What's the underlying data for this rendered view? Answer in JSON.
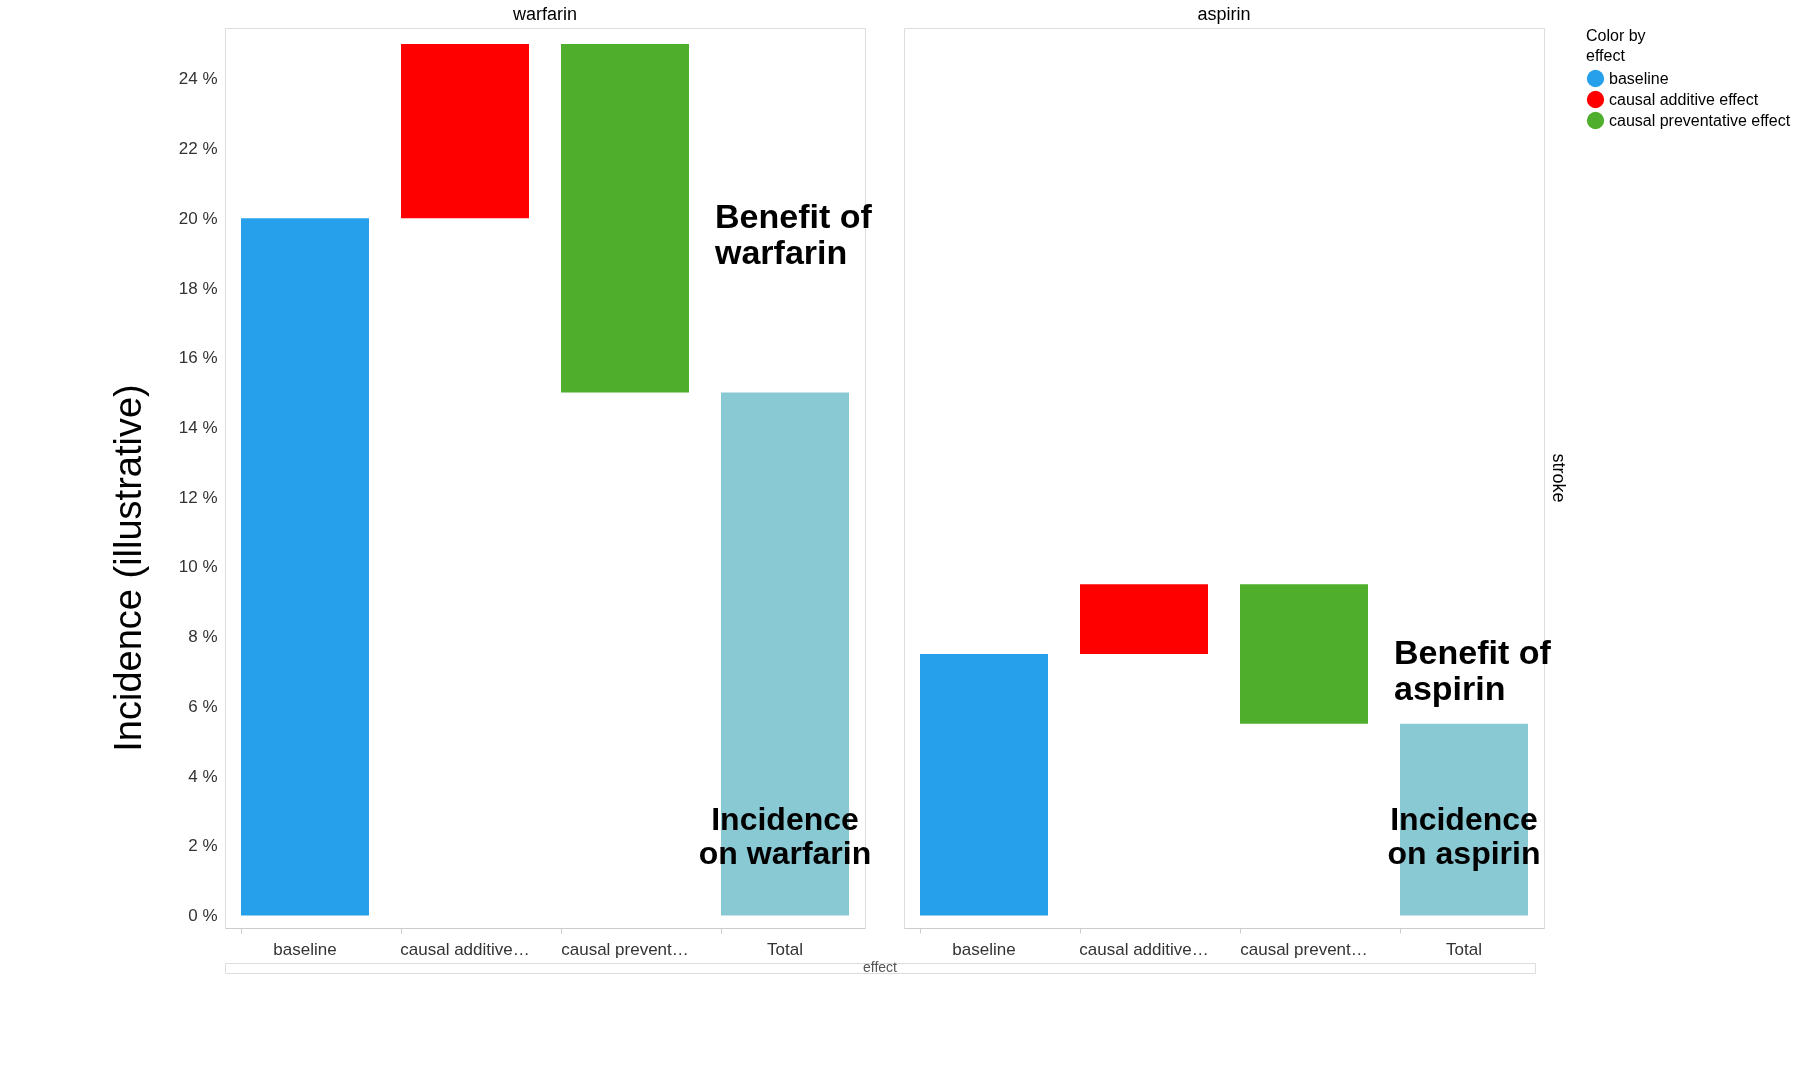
{
  "chart_data": [
    {
      "type": "bar",
      "title": "warfarin",
      "xlabel": "effect",
      "ylabel": "Incidence (illustrative)",
      "categories": [
        "baseline",
        "causal additive…",
        "causal prevent…",
        "Total"
      ],
      "series": [
        {
          "name": "baseline",
          "color": "#27a0eb",
          "values": [
            20,
            null,
            null,
            null
          ],
          "base": [
            0,
            null,
            null,
            null
          ]
        },
        {
          "name": "causal additive effect",
          "color": "#ff0000",
          "values": [
            null,
            5,
            null,
            null
          ],
          "base": [
            null,
            20,
            null,
            null
          ]
        },
        {
          "name": "causal preventative effect",
          "color": "#4fae2b",
          "values": [
            null,
            null,
            -10,
            null
          ],
          "base": [
            null,
            null,
            25,
            null
          ]
        },
        {
          "color": "#89c9d3",
          "values": [
            null,
            null,
            null,
            15
          ],
          "base": [
            null,
            null,
            null,
            0
          ]
        }
      ],
      "ylim": [
        -0.36,
        25.46
      ],
      "yticks": [
        {
          "value": 0,
          "label": "0 %"
        },
        {
          "value": 2,
          "label": "2 %"
        },
        {
          "value": 4,
          "label": "4 %"
        },
        {
          "value": 6,
          "label": "6 %"
        },
        {
          "value": 8,
          "label": "8 %"
        },
        {
          "value": 10,
          "label": "10 %"
        },
        {
          "value": 12,
          "label": "12 %"
        },
        {
          "value": 14,
          "label": "14 %"
        },
        {
          "value": 16,
          "label": "16 %"
        },
        {
          "value": 18,
          "label": "18 %"
        },
        {
          "value": 20,
          "label": "20 %"
        },
        {
          "value": 22,
          "label": "22 %"
        },
        {
          "value": 24,
          "label": "24 %"
        }
      ],
      "grid": false,
      "legend": "top right",
      "legend_title": "Color by\neffect",
      "annotations": [
        "Benefit of\nwarfarin",
        "Incidence\non warfarin"
      ]
    },
    {
      "type": "bar",
      "title": "aspirin",
      "y2label": "stroke",
      "categories": [
        "baseline",
        "causal additive…",
        "causal prevent…",
        "Total"
      ],
      "ylim": [
        -0.36,
        25.46
      ],
      "series": [
        {
          "name": "baseline",
          "color": "#27a0eb",
          "values": [
            7.5,
            null,
            null,
            null
          ],
          "base": [
            0,
            null,
            null,
            null
          ]
        },
        {
          "name": "causal additive effect",
          "color": "#ff0000",
          "values": [
            null,
            2,
            null,
            null
          ],
          "base": [
            null,
            7.5,
            null,
            null
          ]
        },
        {
          "name": "causal preventative effect",
          "color": "#4fae2b",
          "values": [
            null,
            null,
            -4,
            null
          ],
          "base": [
            null,
            null,
            9.5,
            null
          ]
        },
        {
          "color": "#89c9d3",
          "values": [
            null,
            null,
            null,
            5.5
          ],
          "base": [
            null,
            null,
            null,
            0
          ]
        }
      ],
      "grid": false,
      "tick_labels": "x",
      "legend": "top right",
      "annotations": [
        "Benefit of\naspirin",
        "Incidence\non aspirin"
      ]
    }
  ]
}
